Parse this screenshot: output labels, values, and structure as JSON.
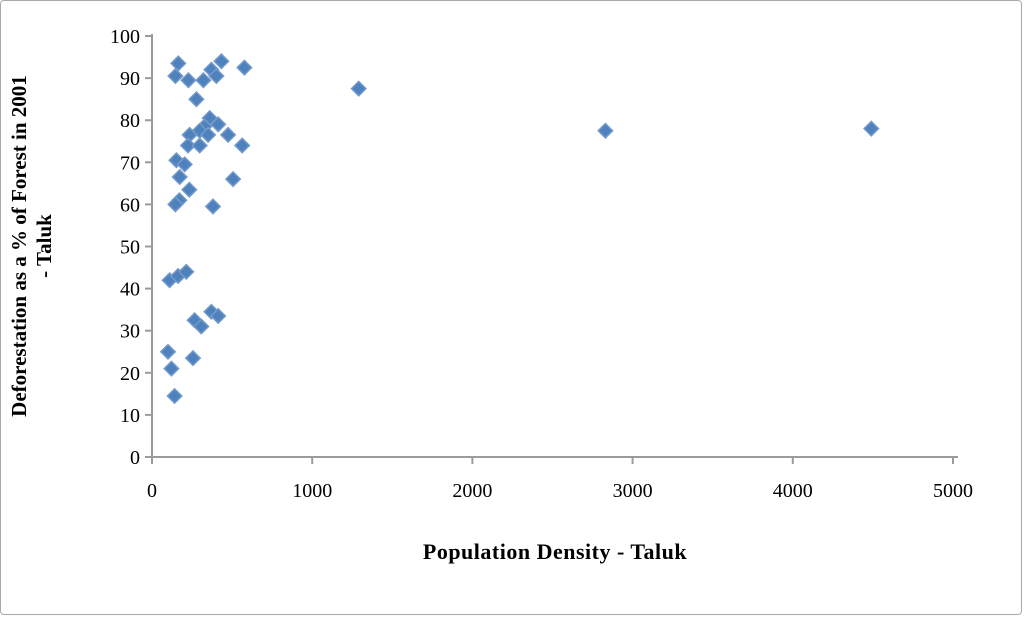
{
  "figure": {
    "background": "#ffffff",
    "border_color": "#a9a9a9"
  },
  "chart_data": {
    "type": "scatter",
    "title": "",
    "xlabel": "Population Density - Taluk",
    "ylabel_line1": "Deforestation as a % of Forest in 2001",
    "ylabel_line2": "- Taluk",
    "xlim": [
      0,
      5000
    ],
    "ylim": [
      0,
      100
    ],
    "x_ticks": [
      0,
      1000,
      2000,
      3000,
      4000,
      5000
    ],
    "y_ticks": [
      0,
      10,
      20,
      30,
      40,
      50,
      60,
      70,
      80,
      90,
      100
    ],
    "grid": false,
    "legend": "none",
    "marker": "diamond",
    "marker_color": "#4F81BD",
    "marker_edge_color": "#729ACA",
    "axis_color": "#9b9b9b",
    "points": [
      [
        164,
        93.5
      ],
      [
        146,
        90.5
      ],
      [
        227,
        89.5
      ],
      [
        321,
        89.5
      ],
      [
        371,
        92.0
      ],
      [
        402,
        90.5
      ],
      [
        433,
        94.0
      ],
      [
        577,
        92.5
      ],
      [
        277,
        85.0
      ],
      [
        360,
        80.5
      ],
      [
        413,
        79.0
      ],
      [
        327,
        78.5
      ],
      [
        298,
        77.5
      ],
      [
        350,
        76.5
      ],
      [
        235,
        76.5
      ],
      [
        475,
        76.5
      ],
      [
        225,
        74.0
      ],
      [
        298,
        74.0
      ],
      [
        563,
        74.0
      ],
      [
        152,
        70.5
      ],
      [
        204,
        69.5
      ],
      [
        173,
        66.5
      ],
      [
        506,
        66.0
      ],
      [
        233,
        63.5
      ],
      [
        171,
        61.0
      ],
      [
        146,
        60.0
      ],
      [
        381,
        59.5
      ],
      [
        110,
        42.0
      ],
      [
        163,
        43.0
      ],
      [
        214,
        44.0
      ],
      [
        371,
        34.5
      ],
      [
        413,
        33.5
      ],
      [
        266,
        32.5
      ],
      [
        308,
        31.0
      ],
      [
        100,
        25.0
      ],
      [
        256,
        23.5
      ],
      [
        121,
        21.0
      ],
      [
        141,
        14.5
      ],
      [
        1290,
        87.5
      ],
      [
        2830,
        77.5
      ],
      [
        4490,
        78.0
      ]
    ]
  }
}
